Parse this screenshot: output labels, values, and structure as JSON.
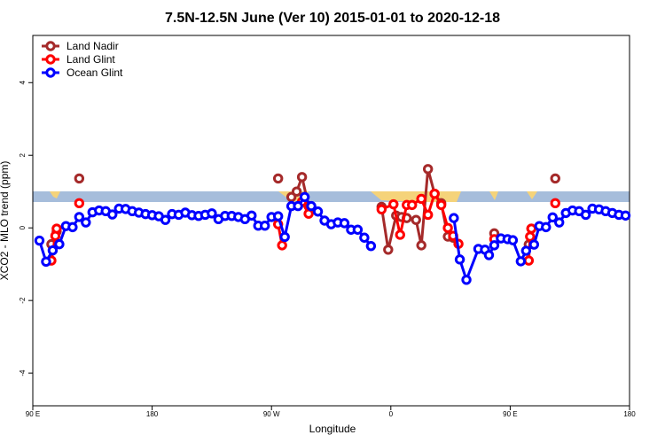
{
  "chart_data": {
    "type": "line",
    "title": "7.5N-12.5N June (Ver 10)   2015-01-01 to 2020-12-18",
    "xlabel": "Longitude",
    "ylabel": "XCO2 - MLO trend (ppm)",
    "xlim": [
      90,
      540
    ],
    "xticks": [
      {
        "value": 90,
        "label": "90 E"
      },
      180,
      {
        "value": 270,
        "label": "90 W"
      },
      {
        "value": 360,
        "label": "0"
      },
      {
        "value": 450,
        "label": "90 E"
      },
      {
        "value": 540,
        "label": "180"
      }
    ],
    "ylim": [
      -4.9,
      5.3
    ],
    "yticks": [
      -4,
      -2,
      0,
      2,
      4
    ],
    "legend": "top-left",
    "series": [
      {
        "name": "Land Nadir",
        "color": "#a52a2a",
        "x": [
          104,
          108,
          null,
          125,
          null,
          275,
          null,
          285,
          289,
          293,
          298,
          null,
          353,
          358,
          364,
          368,
          372,
          379,
          383,
          388,
          393,
          398,
          403,
          407,
          null,
          438,
          null,
          464,
          466,
          null,
          484
        ],
        "values": [
          -0.45,
          -0.1,
          null,
          1.36,
          null,
          1.36,
          null,
          0.85,
          1.0,
          1.4,
          0.6,
          null,
          0.58,
          -0.6,
          0.34,
          0.3,
          0.27,
          0.22,
          -0.48,
          1.62,
          0.94,
          0.68,
          -0.24,
          -0.27,
          null,
          -0.15,
          null,
          -0.46,
          -0.02,
          null,
          1.36
        ]
      },
      {
        "name": "Land Glint",
        "color": "#ff0000",
        "x": [
          104,
          107,
          108,
          null,
          125,
          null,
          275,
          278,
          null,
          293,
          298,
          null,
          353,
          362,
          367,
          372,
          376,
          383,
          388,
          393,
          398,
          403,
          407,
          411,
          null,
          438,
          null,
          464,
          465,
          466,
          null,
          484
        ],
        "values": [
          -0.9,
          -0.22,
          -0.02,
          null,
          0.68,
          null,
          0.1,
          -0.48,
          null,
          0.72,
          0.39,
          null,
          0.51,
          0.65,
          -0.19,
          0.63,
          0.63,
          0.8,
          0.36,
          0.94,
          0.63,
          0,
          -0.22,
          -0.44,
          null,
          -0.31,
          null,
          -0.9,
          -0.24,
          -0.02,
          null,
          0.68
        ]
      },
      {
        "name": "Ocean Glint",
        "color": "#0000ff",
        "x": [
          95,
          100,
          105,
          110,
          115,
          120,
          125,
          130,
          135,
          140,
          145,
          150,
          155,
          160,
          165,
          170,
          175,
          180,
          185,
          190,
          195,
          200,
          205,
          210,
          215,
          220,
          225,
          230,
          235,
          240,
          245,
          250,
          255,
          260,
          265,
          270,
          275,
          280,
          285,
          290,
          295,
          300,
          305,
          310,
          315,
          320,
          325,
          330,
          335,
          340,
          345,
          null,
          407.5,
          412,
          417,
          426,
          431,
          434,
          438,
          443,
          448,
          452,
          458,
          462,
          468,
          472,
          477,
          482,
          487,
          492,
          497,
          502,
          507,
          512,
          517,
          522,
          527,
          532,
          537
        ],
        "values": [
          -0.35,
          -0.93,
          -0.62,
          -0.45,
          0.05,
          0.02,
          0.3,
          0.15,
          0.43,
          0.48,
          0.46,
          0.37,
          0.53,
          0.52,
          0.46,
          0.42,
          0.38,
          0.35,
          0.32,
          0.22,
          0.38,
          0.36,
          0.42,
          0.35,
          0.33,
          0.36,
          0.4,
          0.24,
          0.33,
          0.33,
          0.3,
          0.24,
          0.34,
          0.06,
          0.06,
          0.3,
          0.32,
          -0.25,
          0.6,
          0.6,
          0.85,
          0.6,
          0.45,
          0.2,
          0.1,
          0.15,
          0.13,
          -0.05,
          -0.05,
          -0.27,
          -0.5,
          null,
          0.27,
          -0.87,
          -1.43,
          -0.58,
          -0.6,
          -0.75,
          -0.48,
          -0.29,
          -0.31,
          -0.34,
          -0.92,
          -0.63,
          -0.46,
          0.05,
          0.02,
          0.29,
          0.15,
          0.41,
          0.48,
          0.46,
          0.36,
          0.53,
          0.51,
          0.46,
          0.41,
          0.36,
          0.34
        ]
      }
    ]
  }
}
